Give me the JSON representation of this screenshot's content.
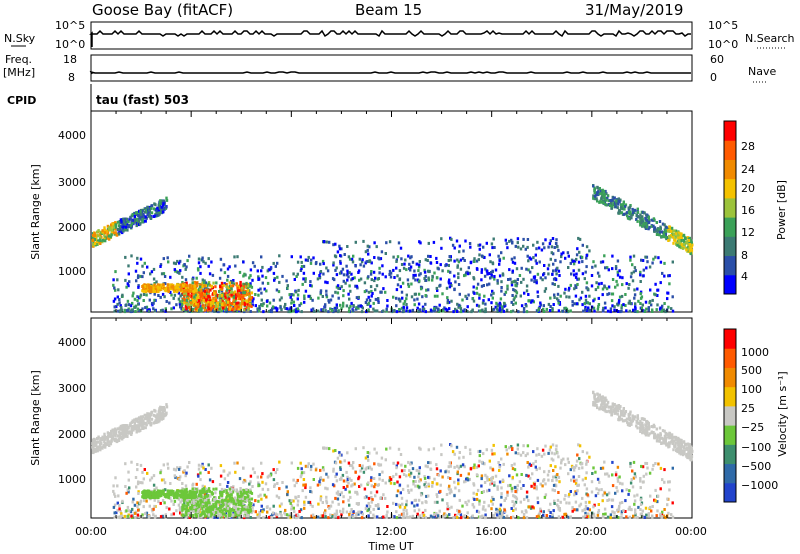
{
  "header": {
    "station": "Goose Bay (fitACF)",
    "beam": "Beam 15",
    "date": "31/May/2019"
  },
  "summary_panels": {
    "sky": {
      "left_label": "N.Sky",
      "right_label": "N.Search",
      "left_ticks": [
        "10^5",
        "10^0"
      ],
      "right_ticks": [
        "10^5",
        "10^0"
      ]
    },
    "freq": {
      "left_label_1": "Freq.",
      "left_label_2": "[MHz]",
      "left_ticks": [
        "18",
        "8"
      ],
      "right_label": "Nave",
      "right_ticks": [
        "60",
        "0"
      ]
    },
    "cpid": {
      "label": "CPID",
      "text": "tau (fast) 503"
    }
  },
  "x_axis": {
    "label": "Time UT",
    "ticks": [
      "00:00",
      "04:00",
      "08:00",
      "12:00",
      "16:00",
      "20:00",
      "00:00"
    ]
  },
  "power_panel": {
    "ylabel": "Slant Range [km]",
    "yticks": [
      "4000",
      "3000",
      "2000",
      "1000"
    ],
    "colorbar_label": "Power [dB]",
    "colorbar_ticks": [
      "28",
      "24",
      "20",
      "16",
      "12",
      "8",
      "4"
    ],
    "colors": [
      "#0000ff",
      "#2b4fa8",
      "#3c7a73",
      "#3ba158",
      "#9cc33b",
      "#f4c200",
      "#f08a00",
      "#ff5a00",
      "#ff0000"
    ]
  },
  "velocity_panel": {
    "ylabel": "Slant Range [km]",
    "yticks": [
      "4000",
      "3000",
      "2000",
      "1000"
    ],
    "colorbar_label": "Velocity [m s⁻¹]",
    "colorbar_ticks": [
      "1000",
      "500",
      "100",
      "25",
      "−25",
      "−100",
      "−500",
      "−1000"
    ],
    "colors": [
      "#2244cc",
      "#2f6aa8",
      "#3e8f6e",
      "#6cc73a",
      "#c8c8c4",
      "#f2c200",
      "#f08a00",
      "#ff5a00",
      "#ff0000"
    ]
  },
  "chart_data": {
    "type": "heatmap",
    "x_unit": "hours UT",
    "xlim": [
      0,
      24
    ],
    "ylim": [
      180,
      4500
    ],
    "features": [
      {
        "t": [
          0.0,
          3.0
        ],
        "r": [
          1550,
          2600
        ],
        "kind": "slant-echo-morning"
      },
      {
        "t": [
          1.0,
          9.0
        ],
        "r": [
          200,
          1300
        ],
        "kind": "near-range-scatter"
      },
      {
        "t": [
          4.0,
          6.3
        ],
        "r": [
          220,
          900
        ],
        "kind": "strong-echo"
      },
      {
        "t": [
          9.0,
          20.5
        ],
        "r": [
          200,
          1800
        ],
        "kind": "sparse-scatter"
      },
      {
        "t": [
          20.0,
          24.0
        ],
        "r": [
          1400,
          2800
        ],
        "kind": "slant-echo-evening"
      }
    ]
  }
}
